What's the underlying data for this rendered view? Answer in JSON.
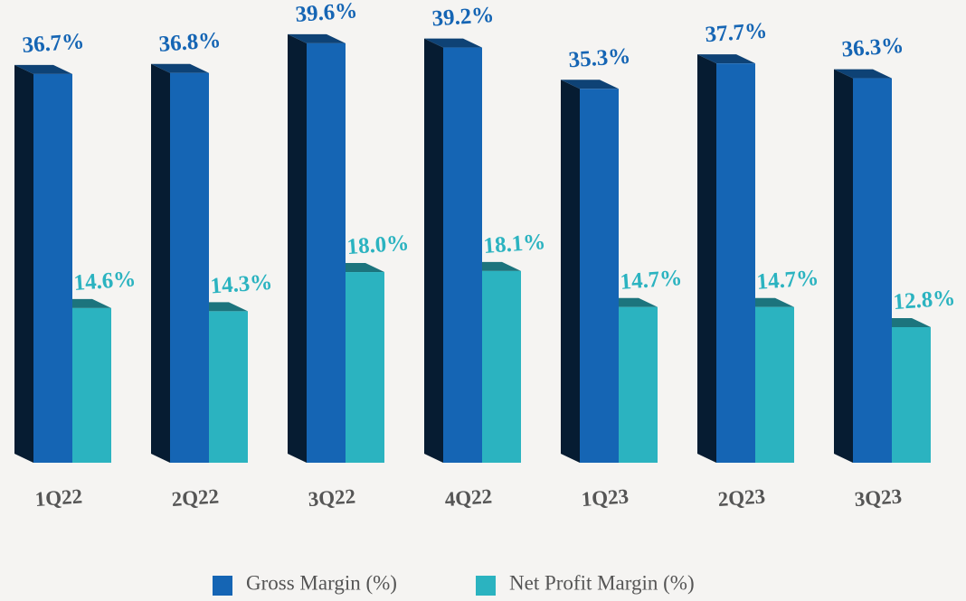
{
  "chart_data": {
    "type": "bar3d",
    "categories": [
      "1Q22",
      "2Q22",
      "3Q22",
      "4Q22",
      "1Q23",
      "2Q23",
      "3Q23"
    ],
    "series": [
      {
        "name": "Gross Margin (%)",
        "color": "#1565b4",
        "values": [
          36.7,
          36.8,
          39.6,
          39.2,
          35.3,
          37.7,
          36.3
        ],
        "value_labels": [
          "36.7%",
          "36.8%",
          "39.6%",
          "39.2%",
          "35.3%",
          "37.7%",
          "36.3%"
        ]
      },
      {
        "name": "Net Profit Margin (%)",
        "color": "#2bb3c0",
        "values": [
          14.6,
          14.3,
          18.0,
          18.1,
          14.7,
          14.7,
          12.8
        ],
        "value_labels": [
          "14.6%",
          "14.3%",
          "18.0%",
          "18.1%",
          "14.7%",
          "14.7%",
          "12.8%"
        ]
      }
    ]
  }
}
